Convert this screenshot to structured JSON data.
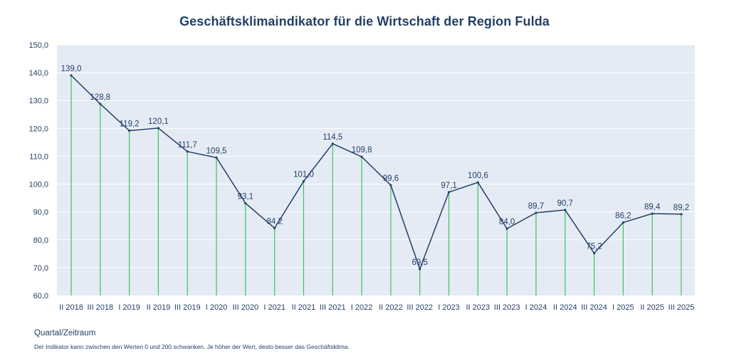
{
  "title": "Geschäftsklimaindikator für die Wirtschaft der Region Fulda",
  "xlabel": "Quartal/Zeitraum",
  "footnote": "Der Indikator kann zwischen den Werten 0 und  200 schwanken. Je höher der Wert, desto besser das Geschäftsklima.",
  "colors": {
    "plot_background": "#e4ebf5",
    "line": "#243f66",
    "droplines": "#3cc45a",
    "text": "#243f66",
    "grid": "#ffffff"
  },
  "chart_data": {
    "type": "line",
    "title": "Geschäftsklimaindikator für die Wirtschaft der Region Fulda",
    "xlabel": "Quartal/Zeitraum",
    "ylabel": "",
    "ylim": [
      60,
      150
    ],
    "yticks": [
      "60,0",
      "70,0",
      "80,0",
      "90,0",
      "100,0",
      "110,0",
      "120,0",
      "130,0",
      "140,0",
      "150,0"
    ],
    "grid": true,
    "categories": [
      "II 2018",
      "III 2018",
      "I 2019",
      "II 2019",
      "III 2019",
      "I 2020",
      "III 2020",
      "I 2021",
      "II 2021",
      "III 2021",
      "I 2022",
      "II 2022",
      "III 2022",
      "I 2023",
      "II 2023",
      "III 2023",
      "I 2024",
      "II 2024",
      "III 2024",
      "I 2025",
      "II 2025",
      "III 2025"
    ],
    "values": [
      139.0,
      128.8,
      119.2,
      120.1,
      111.7,
      109.5,
      93.1,
      84.2,
      101.0,
      114.5,
      109.8,
      99.6,
      69.5,
      97.1,
      100.6,
      84.0,
      89.7,
      90.7,
      75.2,
      86.2,
      89.4,
      89.2
    ],
    "value_labels": [
      "139,0",
      "128,8",
      "119,2",
      "120,1",
      "111,7",
      "109,5",
      "93,1",
      "84,2",
      "101,0",
      "114,5",
      "109,8",
      "99,6",
      "69,5",
      "97,1",
      "100,6",
      "84,0",
      "89,7",
      "90,7",
      "75,2",
      "86,2",
      "89,4",
      "89,2"
    ]
  }
}
